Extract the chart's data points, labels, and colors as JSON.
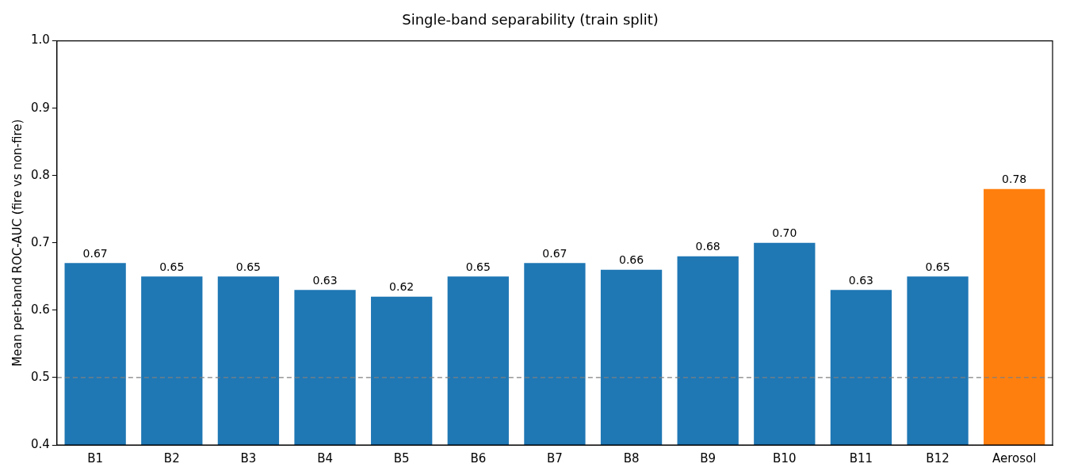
{
  "chart_data": {
    "type": "bar",
    "title": "Single-band separability (train split)",
    "ylabel": "Mean per-band ROC-AUC (fire vs non-fire)",
    "categories": [
      "B1",
      "B2",
      "B3",
      "B4",
      "B5",
      "B6",
      "B7",
      "B8",
      "B9",
      "B10",
      "B11",
      "B12",
      "Aerosol"
    ],
    "values": [
      0.67,
      0.65,
      0.65,
      0.63,
      0.62,
      0.65,
      0.67,
      0.66,
      0.68,
      0.7,
      0.63,
      0.65,
      0.78
    ],
    "value_labels": [
      "0.67",
      "0.65",
      "0.65",
      "0.63",
      "0.62",
      "0.65",
      "0.67",
      "0.66",
      "0.68",
      "0.70",
      "0.63",
      "0.65",
      "0.78"
    ],
    "colors": [
      "#1f77b4",
      "#1f77b4",
      "#1f77b4",
      "#1f77b4",
      "#1f77b4",
      "#1f77b4",
      "#1f77b4",
      "#1f77b4",
      "#1f77b4",
      "#1f77b4",
      "#1f77b4",
      "#1f77b4",
      "#ff7f0e"
    ],
    "ylim": [
      0.4,
      1.0
    ],
    "yticks": [
      0.4,
      0.5,
      0.6,
      0.7,
      0.8,
      0.9,
      {
        "value": 1,
        "label": "1.0"
      }
    ],
    "ref_lines": [
      {
        "axis": "y",
        "value": 0.5,
        "color": "#808080",
        "line_style": "dashed"
      }
    ],
    "grid": false,
    "legend": false
  }
}
